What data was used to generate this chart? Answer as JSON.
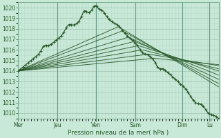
{
  "xlabel": "Pression niveau de la mer( hPa )",
  "bg_color": "#c8e8d8",
  "grid_major_color": "#a8c8b8",
  "grid_minor_color": "#b8d8c8",
  "line_color": "#2a5a2a",
  "ylim": [
    1009.5,
    1020.5
  ],
  "yticks": [
    1010,
    1011,
    1012,
    1013,
    1014,
    1015,
    1016,
    1017,
    1018,
    1019,
    1020
  ],
  "day_labels": [
    "Mer",
    "Jeu",
    "Ven",
    "Sam",
    "Dim",
    "Lu"
  ],
  "day_fracs": [
    0.0,
    0.195,
    0.39,
    0.585,
    0.82,
    0.955
  ],
  "xlim": [
    0,
    1.0
  ]
}
